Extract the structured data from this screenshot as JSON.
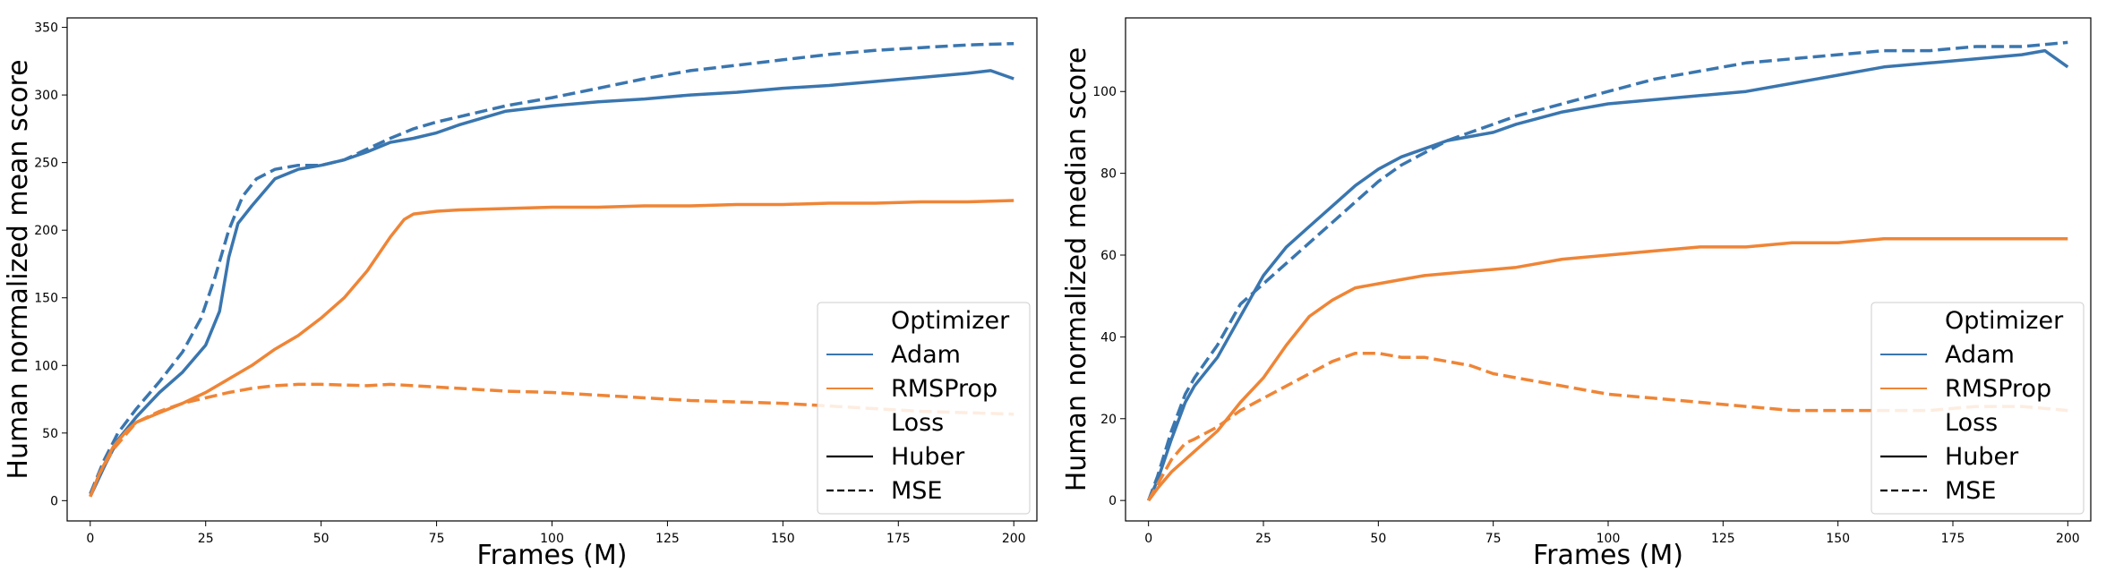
{
  "colors": {
    "Adam": "#3a76af",
    "RMSProp": "#ef8536",
    "axis": "#000000",
    "legend_border": "#cccccc"
  },
  "legend": {
    "optimizer_title": "Optimizer",
    "loss_title": "Loss",
    "items": [
      {
        "label": "Adam",
        "type": "color",
        "key": "Adam"
      },
      {
        "label": "RMSProp",
        "type": "color",
        "key": "RMSProp"
      },
      {
        "label": "Huber",
        "type": "style",
        "style": "solid"
      },
      {
        "label": "MSE",
        "type": "style",
        "style": "dashed"
      }
    ]
  },
  "chart_data": [
    {
      "type": "line",
      "xlabel": "Frames (M)",
      "ylabel": "Human normalized mean score",
      "xlim": [
        -5,
        205
      ],
      "ylim": [
        -15,
        357
      ],
      "xticks": [
        0,
        25,
        50,
        75,
        100,
        125,
        150,
        175,
        200
      ],
      "yticks": [
        0,
        50,
        100,
        150,
        200,
        250,
        300,
        350
      ],
      "legend_position": "lower-right",
      "grid": false,
      "series": [
        {
          "name": "Adam / Huber",
          "optimizer": "Adam",
          "loss": "Huber",
          "x": [
            0,
            3,
            6,
            10,
            15,
            20,
            25,
            28,
            30,
            32,
            35,
            40,
            45,
            50,
            55,
            60,
            65,
            70,
            75,
            80,
            90,
            100,
            110,
            120,
            130,
            140,
            150,
            160,
            170,
            180,
            190,
            195,
            200
          ],
          "y": [
            3,
            25,
            45,
            62,
            80,
            95,
            115,
            140,
            180,
            205,
            218,
            238,
            245,
            248,
            252,
            258,
            265,
            268,
            272,
            278,
            288,
            292,
            295,
            297,
            300,
            302,
            305,
            307,
            310,
            313,
            316,
            318,
            312
          ]
        },
        {
          "name": "Adam / MSE",
          "optimizer": "Adam",
          "loss": "MSE",
          "x": [
            0,
            3,
            6,
            10,
            15,
            20,
            24,
            27,
            30,
            33,
            36,
            40,
            45,
            50,
            55,
            60,
            65,
            70,
            75,
            80,
            90,
            100,
            110,
            120,
            130,
            140,
            150,
            160,
            170,
            180,
            190,
            200
          ],
          "y": [
            5,
            30,
            50,
            68,
            88,
            110,
            135,
            165,
            200,
            225,
            238,
            245,
            248,
            248,
            252,
            260,
            268,
            275,
            280,
            284,
            292,
            298,
            305,
            312,
            318,
            322,
            326,
            330,
            333,
            335,
            337,
            338
          ]
        },
        {
          "name": "RMSProp / Huber",
          "optimizer": "RMSProp",
          "loss": "Huber",
          "x": [
            0,
            2,
            5,
            8,
            10,
            15,
            20,
            25,
            30,
            35,
            40,
            45,
            50,
            55,
            60,
            65,
            68,
            70,
            75,
            80,
            90,
            100,
            110,
            120,
            130,
            140,
            150,
            160,
            170,
            180,
            190,
            200
          ],
          "y": [
            3,
            20,
            40,
            52,
            58,
            65,
            72,
            80,
            90,
            100,
            112,
            122,
            135,
            150,
            170,
            195,
            208,
            212,
            214,
            215,
            216,
            217,
            217,
            218,
            218,
            219,
            219,
            220,
            220,
            221,
            221,
            222
          ]
        },
        {
          "name": "RMSProp / MSE",
          "optimizer": "RMSProp",
          "loss": "MSE",
          "x": [
            0,
            2,
            5,
            8,
            10,
            15,
            20,
            25,
            30,
            35,
            40,
            45,
            50,
            60,
            65,
            70,
            80,
            90,
            100,
            110,
            120,
            130,
            140,
            150,
            160,
            170,
            180,
            190,
            200
          ],
          "y": [
            3,
            20,
            38,
            50,
            58,
            66,
            72,
            76,
            80,
            83,
            85,
            86,
            86,
            85,
            86,
            85,
            83,
            81,
            80,
            78,
            76,
            74,
            73,
            72,
            70,
            68,
            66,
            65,
            64
          ]
        }
      ]
    },
    {
      "type": "line",
      "xlabel": "Frames (M)",
      "ylabel": "Human normalized median score",
      "xlim": [
        -5,
        205
      ],
      "ylim": [
        -5,
        118
      ],
      "xticks": [
        0,
        25,
        50,
        75,
        100,
        125,
        150,
        175,
        200
      ],
      "yticks": [
        0,
        20,
        40,
        60,
        80,
        100
      ],
      "legend_position": "lower-right",
      "grid": false,
      "series": [
        {
          "name": "Adam / Huber",
          "optimizer": "Adam",
          "loss": "Huber",
          "x": [
            0,
            2,
            5,
            8,
            10,
            15,
            20,
            25,
            30,
            35,
            40,
            45,
            50,
            55,
            60,
            65,
            70,
            75,
            80,
            90,
            100,
            110,
            120,
            130,
            140,
            150,
            160,
            170,
            180,
            190,
            195,
            200
          ],
          "y": [
            0,
            5,
            15,
            24,
            28,
            35,
            45,
            55,
            62,
            67,
            72,
            77,
            81,
            84,
            86,
            88,
            89,
            90,
            92,
            95,
            97,
            98,
            99,
            100,
            102,
            104,
            106,
            107,
            108,
            109,
            110,
            106
          ]
        },
        {
          "name": "Adam / MSE",
          "optimizer": "Adam",
          "loss": "MSE",
          "x": [
            0,
            2,
            5,
            8,
            10,
            15,
            20,
            25,
            30,
            35,
            40,
            45,
            50,
            55,
            60,
            65,
            70,
            75,
            80,
            90,
            100,
            110,
            120,
            130,
            140,
            150,
            160,
            170,
            180,
            190,
            200
          ],
          "y": [
            0,
            6,
            17,
            26,
            30,
            38,
            48,
            53,
            58,
            63,
            68,
            73,
            78,
            82,
            85,
            88,
            90,
            92,
            94,
            97,
            100,
            103,
            105,
            107,
            108,
            109,
            110,
            110,
            111,
            111,
            112
          ]
        },
        {
          "name": "RMSProp / Huber",
          "optimizer": "RMSProp",
          "loss": "Huber",
          "x": [
            0,
            2,
            5,
            8,
            10,
            15,
            20,
            25,
            30,
            35,
            40,
            45,
            50,
            55,
            60,
            70,
            80,
            90,
            100,
            110,
            120,
            130,
            140,
            150,
            160,
            170,
            180,
            190,
            200
          ],
          "y": [
            0,
            3,
            7,
            10,
            12,
            17,
            24,
            30,
            38,
            45,
            49,
            52,
            53,
            54,
            55,
            56,
            57,
            59,
            60,
            61,
            62,
            62,
            63,
            63,
            64,
            64,
            64,
            64,
            64
          ]
        },
        {
          "name": "RMSProp / MSE",
          "optimizer": "RMSProp",
          "loss": "MSE",
          "x": [
            0,
            2,
            5,
            8,
            10,
            15,
            20,
            25,
            30,
            35,
            40,
            45,
            50,
            55,
            60,
            65,
            70,
            75,
            80,
            90,
            100,
            110,
            120,
            130,
            140,
            150,
            160,
            170,
            180,
            190,
            200
          ],
          "y": [
            0,
            4,
            10,
            14,
            15,
            18,
            22,
            25,
            28,
            31,
            34,
            36,
            36,
            35,
            35,
            34,
            33,
            31,
            30,
            28,
            26,
            25,
            24,
            23,
            22,
            22,
            22,
            22,
            23,
            23,
            22
          ]
        }
      ]
    }
  ]
}
